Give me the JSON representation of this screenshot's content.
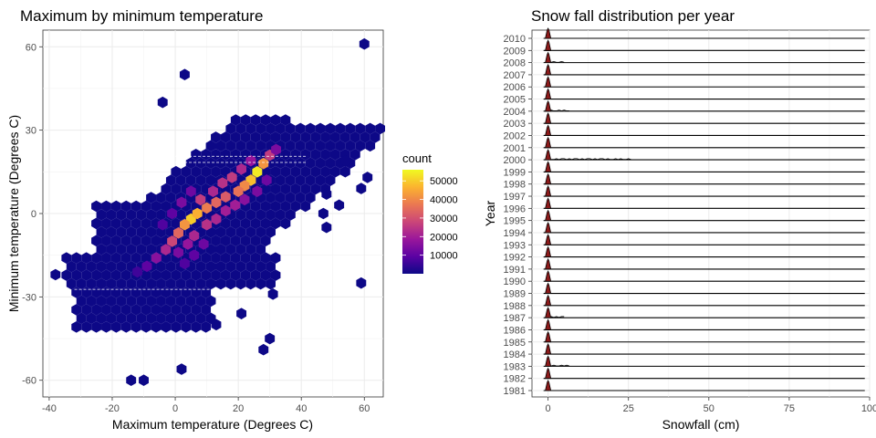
{
  "chart_data": [
    {
      "type": "heatmap",
      "subtype": "hexbin",
      "title": "Maximum by minimum temperature",
      "xlabel": "Maximum temperature (Degrees C)",
      "ylabel": "Minimum temperature (Degrees C)",
      "xlim": [
        -42,
        66
      ],
      "ylim": [
        -66,
        66
      ],
      "x_ticks": [
        -40,
        -20,
        0,
        20,
        40,
        60
      ],
      "y_ticks": [
        -60,
        -30,
        0,
        30,
        60
      ],
      "legend": {
        "title": "count",
        "placement": "right",
        "breaks": [
          10000,
          20000,
          30000,
          40000,
          50000
        ],
        "break_labels": [
          "10000",
          "20000",
          "30000",
          "40000",
          "50000"
        ],
        "range": [
          1,
          56000
        ],
        "palette": [
          "#0d0887",
          "#5b02a3",
          "#9a179b",
          "#cb4678",
          "#eb7852",
          "#fbb32f",
          "#f0f921"
        ]
      },
      "grid": true,
      "points": [
        {
          "x": 60,
          "y": 61,
          "count": 5
        },
        {
          "x": 3,
          "y": 50,
          "count": 5
        },
        {
          "x": -4,
          "y": 40,
          "count": 8
        },
        {
          "x": 54,
          "y": 19,
          "count": 5
        },
        {
          "x": 61,
          "y": 13,
          "count": 5
        },
        {
          "x": 59,
          "y": 9,
          "count": 5
        },
        {
          "x": 52,
          "y": 3,
          "count": 5
        },
        {
          "x": 48,
          "y": 7,
          "count": 5
        },
        {
          "x": 47,
          "y": 0,
          "count": 5
        },
        {
          "x": 48,
          "y": -5,
          "count": 8
        },
        {
          "x": -38,
          "y": -22,
          "count": 5
        },
        {
          "x": 59,
          "y": -25,
          "count": 5
        },
        {
          "x": 31,
          "y": -29,
          "count": 5
        },
        {
          "x": 21,
          "y": -36,
          "count": 5
        },
        {
          "x": 13,
          "y": -40,
          "count": 5
        },
        {
          "x": 30,
          "y": -45,
          "count": 5
        },
        {
          "x": 28,
          "y": -49,
          "count": 5
        },
        {
          "x": 2,
          "y": -56,
          "count": 5
        },
        {
          "x": -14,
          "y": -60,
          "count": 5
        },
        {
          "x": -10,
          "y": -60,
          "count": 5
        },
        {
          "x": 26,
          "y": 15,
          "count": 54000
        },
        {
          "x": 24,
          "y": 12,
          "count": 48000
        },
        {
          "x": 28,
          "y": 18,
          "count": 42000
        },
        {
          "x": 22,
          "y": 10,
          "count": 40000
        },
        {
          "x": 20,
          "y": 8,
          "count": 36000
        },
        {
          "x": 5,
          "y": -2,
          "count": 50000
        },
        {
          "x": 7,
          "y": 0,
          "count": 46000
        },
        {
          "x": 3,
          "y": -4,
          "count": 42000
        },
        {
          "x": 10,
          "y": 2,
          "count": 38000
        },
        {
          "x": 13,
          "y": 4,
          "count": 34000
        },
        {
          "x": 16,
          "y": 6,
          "count": 32000
        },
        {
          "x": 1,
          "y": -7,
          "count": 34000
        },
        {
          "x": -1,
          "y": -10,
          "count": 28000
        },
        {
          "x": -3,
          "y": -13,
          "count": 22000
        },
        {
          "x": -6,
          "y": -16,
          "count": 16000
        },
        {
          "x": -9,
          "y": -19,
          "count": 10000
        },
        {
          "x": -12,
          "y": -21,
          "count": 6000
        },
        {
          "x": 30,
          "y": 21,
          "count": 26000
        },
        {
          "x": 32,
          "y": 23,
          "count": 14000
        },
        {
          "x": 8,
          "y": 5,
          "count": 26000
        },
        {
          "x": 12,
          "y": 8,
          "count": 22000
        },
        {
          "x": 15,
          "y": 11,
          "count": 24000
        },
        {
          "x": 18,
          "y": 13,
          "count": 26000
        },
        {
          "x": 21,
          "y": 16,
          "count": 22000
        },
        {
          "x": 24,
          "y": 19,
          "count": 18000
        },
        {
          "x": 10,
          "y": -4,
          "count": 24000
        },
        {
          "x": 13,
          "y": -2,
          "count": 22000
        },
        {
          "x": 16,
          "y": 1,
          "count": 20000
        },
        {
          "x": 19,
          "y": 3,
          "count": 20000
        },
        {
          "x": 6,
          "y": -8,
          "count": 22000
        },
        {
          "x": 4,
          "y": -11,
          "count": 18000
        },
        {
          "x": 1,
          "y": -14,
          "count": 14000
        },
        {
          "x": 22,
          "y": 5,
          "count": 16000
        },
        {
          "x": 26,
          "y": 8,
          "count": 14000
        },
        {
          "x": 29,
          "y": 12,
          "count": 12000
        },
        {
          "x": 9,
          "y": -11,
          "count": 12000
        },
        {
          "x": 6,
          "y": -15,
          "count": 10000
        },
        {
          "x": 3,
          "y": -18,
          "count": 8000
        },
        {
          "x": 5,
          "y": 8,
          "count": 12000
        },
        {
          "x": 2,
          "y": 4,
          "count": 14000
        },
        {
          "x": -1,
          "y": 0,
          "count": 10000
        },
        {
          "x": -4,
          "y": -4,
          "count": 8000
        }
      ]
    },
    {
      "type": "area",
      "subtype": "ridgeline",
      "title": "Snow fall distribution per year",
      "xlabel": "Snowfall (cm)",
      "ylabel": "Year",
      "xlim": [
        -5,
        100
      ],
      "x_ticks": [
        0,
        25,
        50,
        75,
        100
      ],
      "categories": [
        "1981",
        "1982",
        "1983",
        "1984",
        "1985",
        "1986",
        "1987",
        "1988",
        "1989",
        "1990",
        "1991",
        "1992",
        "1993",
        "1994",
        "1995",
        "1996",
        "1997",
        "1998",
        "1999",
        "2000",
        "2001",
        "2002",
        "2003",
        "2004",
        "2005",
        "2006",
        "2007",
        "2008",
        "2009",
        "2010"
      ],
      "peak_x": 0,
      "fill_color": "#8b1a1a",
      "tail_max": [
        0,
        0,
        7,
        0,
        0,
        0,
        5,
        0,
        0,
        0,
        0,
        0,
        0,
        0,
        0,
        0,
        0,
        0,
        0,
        26,
        0,
        0,
        0,
        7,
        0,
        0,
        0,
        5,
        0,
        0
      ],
      "grid": true
    }
  ]
}
